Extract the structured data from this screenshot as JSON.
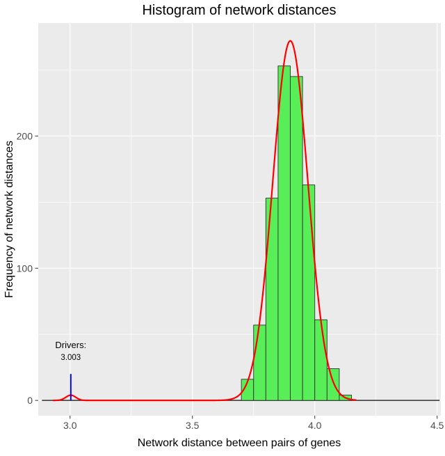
{
  "chart_data": {
    "type": "histogram",
    "title": "Histogram of network distances",
    "xlabel": "Network distance between pairs of genes",
    "ylabel": "Frequency of network distances",
    "xlim": [
      2.87,
      4.515
    ],
    "ylim": [
      -11.5,
      285.5
    ],
    "x_ticks": [
      3.0,
      3.5,
      4.0,
      4.5
    ],
    "x_tick_labels": [
      "3.0",
      "3.5",
      "4.0",
      "4.5"
    ],
    "x_minor_ticks": [
      3.25,
      3.75,
      4.25
    ],
    "y_ticks": [
      0,
      100,
      200
    ],
    "y_tick_labels": [
      "0",
      "100",
      "200"
    ],
    "y_minor_ticks": [
      50,
      150,
      250
    ],
    "grid": true,
    "legend": "none",
    "panel_bg": "#EBEBEB",
    "grid_color": "#FFFFFF",
    "tick_color": "#333333",
    "tick_label_color": "#4D4D4D",
    "bins": {
      "start": 3.7,
      "width": 0.05,
      "counts": [
        16,
        57,
        153,
        253,
        245,
        163,
        61,
        24,
        4
      ]
    },
    "baseline_extent": [
      2.885,
      4.51
    ],
    "bar_fill": "#58EE58",
    "bar_stroke": "#2F2F2F",
    "density_curve": {
      "color": "#FF0000",
      "width": 2.2,
      "range": [
        2.93,
        4.17
      ],
      "components": [
        {
          "mean": 3.9,
          "sd": 0.072,
          "peak": 272
        },
        {
          "mean": 3.003,
          "sd": 0.02,
          "peak": 4
        }
      ]
    },
    "annotation": {
      "label": "Drivers:",
      "value": "3.003",
      "x": 3.003,
      "line_top": 20,
      "line_color": "#0000FF",
      "text_color": "#000000"
    }
  }
}
